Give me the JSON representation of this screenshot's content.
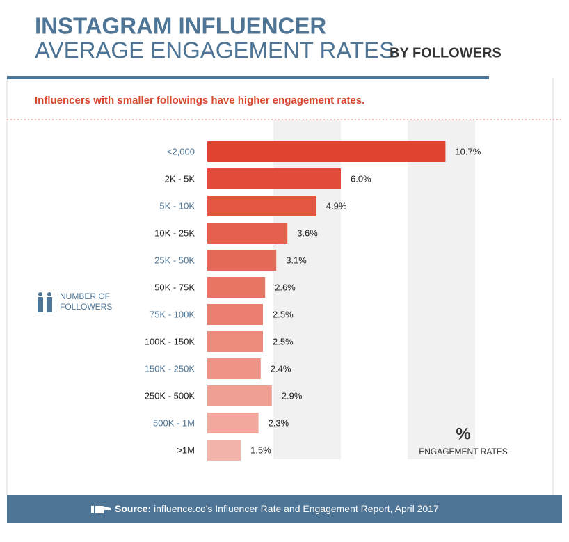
{
  "chart_data": {
    "type": "bar",
    "orientation": "horizontal",
    "title": "INSTAGRAM INFLUENCER",
    "subtitle_main": "AVERAGE ENGAGEMENT RATES",
    "subtitle_suffix": "BY FOLLOWERS",
    "caption": "Influencers with smaller followings have higher engagement rates.",
    "y_label": [
      "NUMBER OF",
      "FOLLOWERS"
    ],
    "x_label_symbol": "%",
    "x_label": "ENGAGEMENT RATES",
    "categories": [
      "<2,000",
      "2K - 5K",
      "5K - 10K",
      "10K - 25K",
      "25K - 50K",
      "50K - 75K",
      "75K - 100K",
      "100K - 150K",
      "150K - 250K",
      "250K - 500K",
      "500K - 1M",
      ">1M"
    ],
    "values": [
      10.7,
      6.0,
      4.9,
      3.6,
      3.1,
      2.6,
      2.5,
      2.5,
      2.4,
      2.9,
      2.3,
      1.5
    ],
    "value_labels": [
      "10.7%",
      "6.0%",
      "4.9%",
      "3.6%",
      "3.1%",
      "2.6%",
      "2.5%",
      "2.5%",
      "2.4%",
      "2.9%",
      "2.3%",
      "1.5%"
    ],
    "colors": [
      "#e0432f",
      "#e24c39",
      "#e35642",
      "#e5604d",
      "#e66a58",
      "#e87563",
      "#ea7f6f",
      "#ec8a7c",
      "#ee9487",
      "#ef9f93",
      "#f1a99e",
      "#f2b3aa"
    ],
    "source_label": "Source:",
    "source": "influence.co's Influencer Rate and Engagement Report, April 2017"
  }
}
